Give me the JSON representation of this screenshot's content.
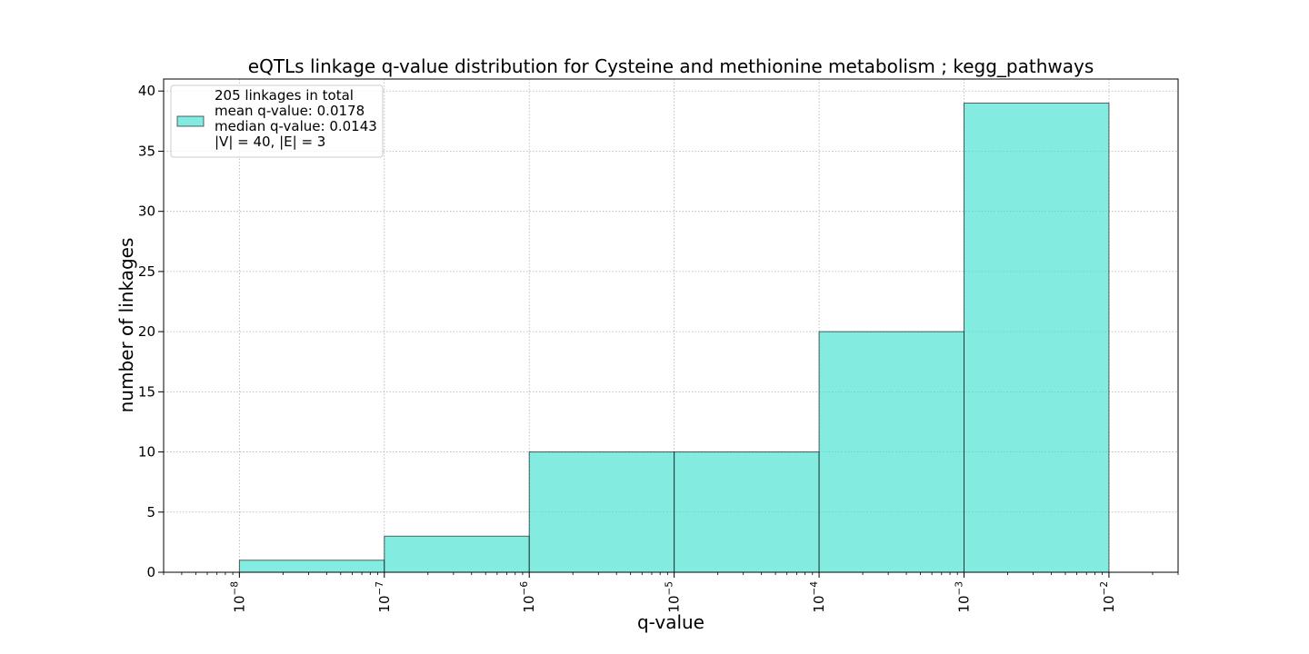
{
  "chart_data": {
    "type": "bar",
    "title": "eQTLs linkage q-value distribution for Cysteine and methionine metabolism ; kegg_pathways",
    "xlabel": "q-value",
    "ylabel": "number of linkages",
    "x_scale": "log",
    "xlim": [
      3e-09,
      0.03
    ],
    "ylim": [
      0,
      41
    ],
    "grid": true,
    "legend_placement": "top-left",
    "bar_color": "#40E0D0",
    "bar_alpha": 0.65,
    "edge_color": "#000000",
    "bins": [
      {
        "low": 1e-08,
        "high": 1e-07,
        "value": 1
      },
      {
        "low": 1e-07,
        "high": 1e-06,
        "value": 3
      },
      {
        "low": 1e-06,
        "high": 1e-05,
        "value": 10
      },
      {
        "low": 1e-05,
        "high": 0.0001,
        "value": 10
      },
      {
        "low": 0.0001,
        "high": 0.001,
        "value": 20
      },
      {
        "low": 0.001,
        "high": 0.01,
        "value": 39
      }
    ],
    "x_ticks": [
      {
        "exp": -8,
        "base": "10",
        "sup": "−8"
      },
      {
        "exp": -7,
        "base": "10",
        "sup": "−7"
      },
      {
        "exp": -6,
        "base": "10",
        "sup": "−6"
      },
      {
        "exp": -5,
        "base": "10",
        "sup": "−5"
      },
      {
        "exp": -4,
        "base": "10",
        "sup": "−4"
      },
      {
        "exp": -3,
        "base": "10",
        "sup": "−3"
      },
      {
        "exp": -2,
        "base": "10",
        "sup": "−2"
      }
    ],
    "y_ticks": [
      0,
      5,
      10,
      15,
      20,
      25,
      30,
      35,
      40
    ],
    "legend_lines": [
      "205 linkages in total",
      "mean q-value: 0.0178",
      "median q-value: 0.0143",
      "|V| = 40, |E| = 3"
    ]
  }
}
